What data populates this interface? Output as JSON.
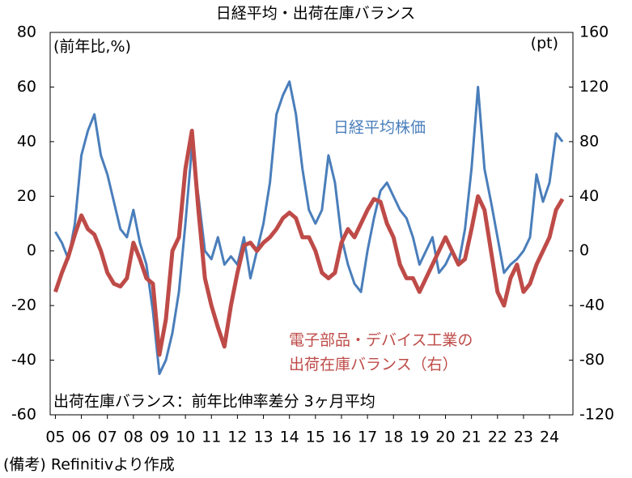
{
  "chart_data": {
    "type": "line",
    "title": "日経平均・出荷在庫バランス",
    "y_label": "(前年比,%)",
    "y2_label": "(pt)",
    "note": "出荷在庫バランス：前年比伸率差分 3ヶ月平均",
    "source": "(備考) Refinitivより作成",
    "xlim": [
      4.8,
      24.9
    ],
    "xticks": [
      {
        "value": 5,
        "label": "05"
      },
      {
        "value": 6,
        "label": "06"
      },
      {
        "value": 7,
        "label": "07"
      },
      {
        "value": 8,
        "label": "08"
      },
      {
        "value": 9,
        "label": "09"
      },
      {
        "value": 10,
        "label": "10"
      },
      {
        "value": 11,
        "label": "11"
      },
      {
        "value": 12,
        "label": "12"
      },
      {
        "value": 13,
        "label": "13"
      },
      {
        "value": 14,
        "label": "14"
      },
      {
        "value": 15,
        "label": "15"
      },
      {
        "value": 16,
        "label": "16"
      },
      {
        "value": 17,
        "label": "17"
      },
      {
        "value": 18,
        "label": "18"
      },
      {
        "value": 19,
        "label": "19"
      },
      {
        "value": 20,
        "label": "20"
      },
      {
        "value": 21,
        "label": "21"
      },
      {
        "value": 22,
        "label": "22"
      },
      {
        "value": 23,
        "label": "23"
      },
      {
        "value": 24,
        "label": "24"
      }
    ],
    "ylim": [
      -60,
      80
    ],
    "yticks": [
      -60,
      -40,
      -20,
      0,
      20,
      40,
      60,
      80
    ],
    "y2lim": [
      -120,
      160
    ],
    "y2ticks": [
      -120,
      -80,
      -40,
      0,
      40,
      80,
      120,
      160
    ],
    "x": [
      5,
      5.25,
      5.5,
      5.75,
      6,
      6.25,
      6.5,
      6.75,
      7,
      7.25,
      7.5,
      7.75,
      8,
      8.25,
      8.5,
      8.75,
      9,
      9.25,
      9.5,
      9.75,
      10,
      10.25,
      10.5,
      10.75,
      11,
      11.25,
      11.5,
      11.75,
      12,
      12.25,
      12.5,
      12.75,
      13,
      13.25,
      13.5,
      13.75,
      14,
      14.25,
      14.5,
      14.75,
      15,
      15.25,
      15.5,
      15.75,
      16,
      16.25,
      16.5,
      16.75,
      17,
      17.25,
      17.5,
      17.75,
      18,
      18.25,
      18.5,
      18.75,
      19,
      19.25,
      19.5,
      19.75,
      20,
      20.25,
      20.5,
      20.75,
      21,
      21.25,
      21.5,
      21.75,
      22,
      22.25,
      22.5,
      22.75,
      23,
      23.25,
      23.5,
      23.75,
      24,
      24.25,
      24.5
    ],
    "series": [
      {
        "name": "日経平均株価",
        "color": "#4a7ebb",
        "width": 3,
        "values": [
          7,
          3,
          -3,
          10,
          35,
          44,
          50,
          35,
          28,
          18,
          8,
          5,
          15,
          3,
          -5,
          -22,
          -45,
          -40,
          -30,
          -15,
          10,
          38,
          20,
          0,
          -3,
          5,
          -5,
          -2,
          -5,
          5,
          -10,
          0,
          10,
          25,
          50,
          57,
          62,
          50,
          30,
          15,
          10,
          15,
          35,
          25,
          5,
          -5,
          -12,
          -15,
          0,
          12,
          22,
          25,
          20,
          15,
          12,
          5,
          -5,
          0,
          5,
          -8,
          -5,
          0,
          -5,
          8,
          30,
          60,
          30,
          18,
          5,
          -8,
          -5,
          -3,
          0,
          5,
          28,
          18,
          25,
          43,
          40
        ]
      },
      {
        "name": "電子部品・デバイス工業の\n出荷在庫バランス（右）",
        "color": "#be4b48",
        "width": 5,
        "axis": "y2",
        "values": [
          -30,
          -16,
          -4,
          12,
          26,
          16,
          12,
          0,
          -16,
          -24,
          -26,
          -20,
          6,
          -6,
          -20,
          -24,
          -76,
          -50,
          0,
          10,
          60,
          88,
          30,
          -20,
          -40,
          -56,
          -70,
          -40,
          -16,
          4,
          6,
          0,
          6,
          10,
          16,
          24,
          28,
          24,
          10,
          10,
          0,
          -16,
          -20,
          -16,
          6,
          16,
          10,
          20,
          30,
          38,
          36,
          20,
          10,
          -10,
          -20,
          -20,
          -30,
          -20,
          -10,
          0,
          10,
          0,
          -10,
          -6,
          16,
          40,
          30,
          0,
          -30,
          -40,
          -20,
          -10,
          -30,
          -24,
          -10,
          0,
          10,
          30,
          38
        ]
      }
    ]
  }
}
